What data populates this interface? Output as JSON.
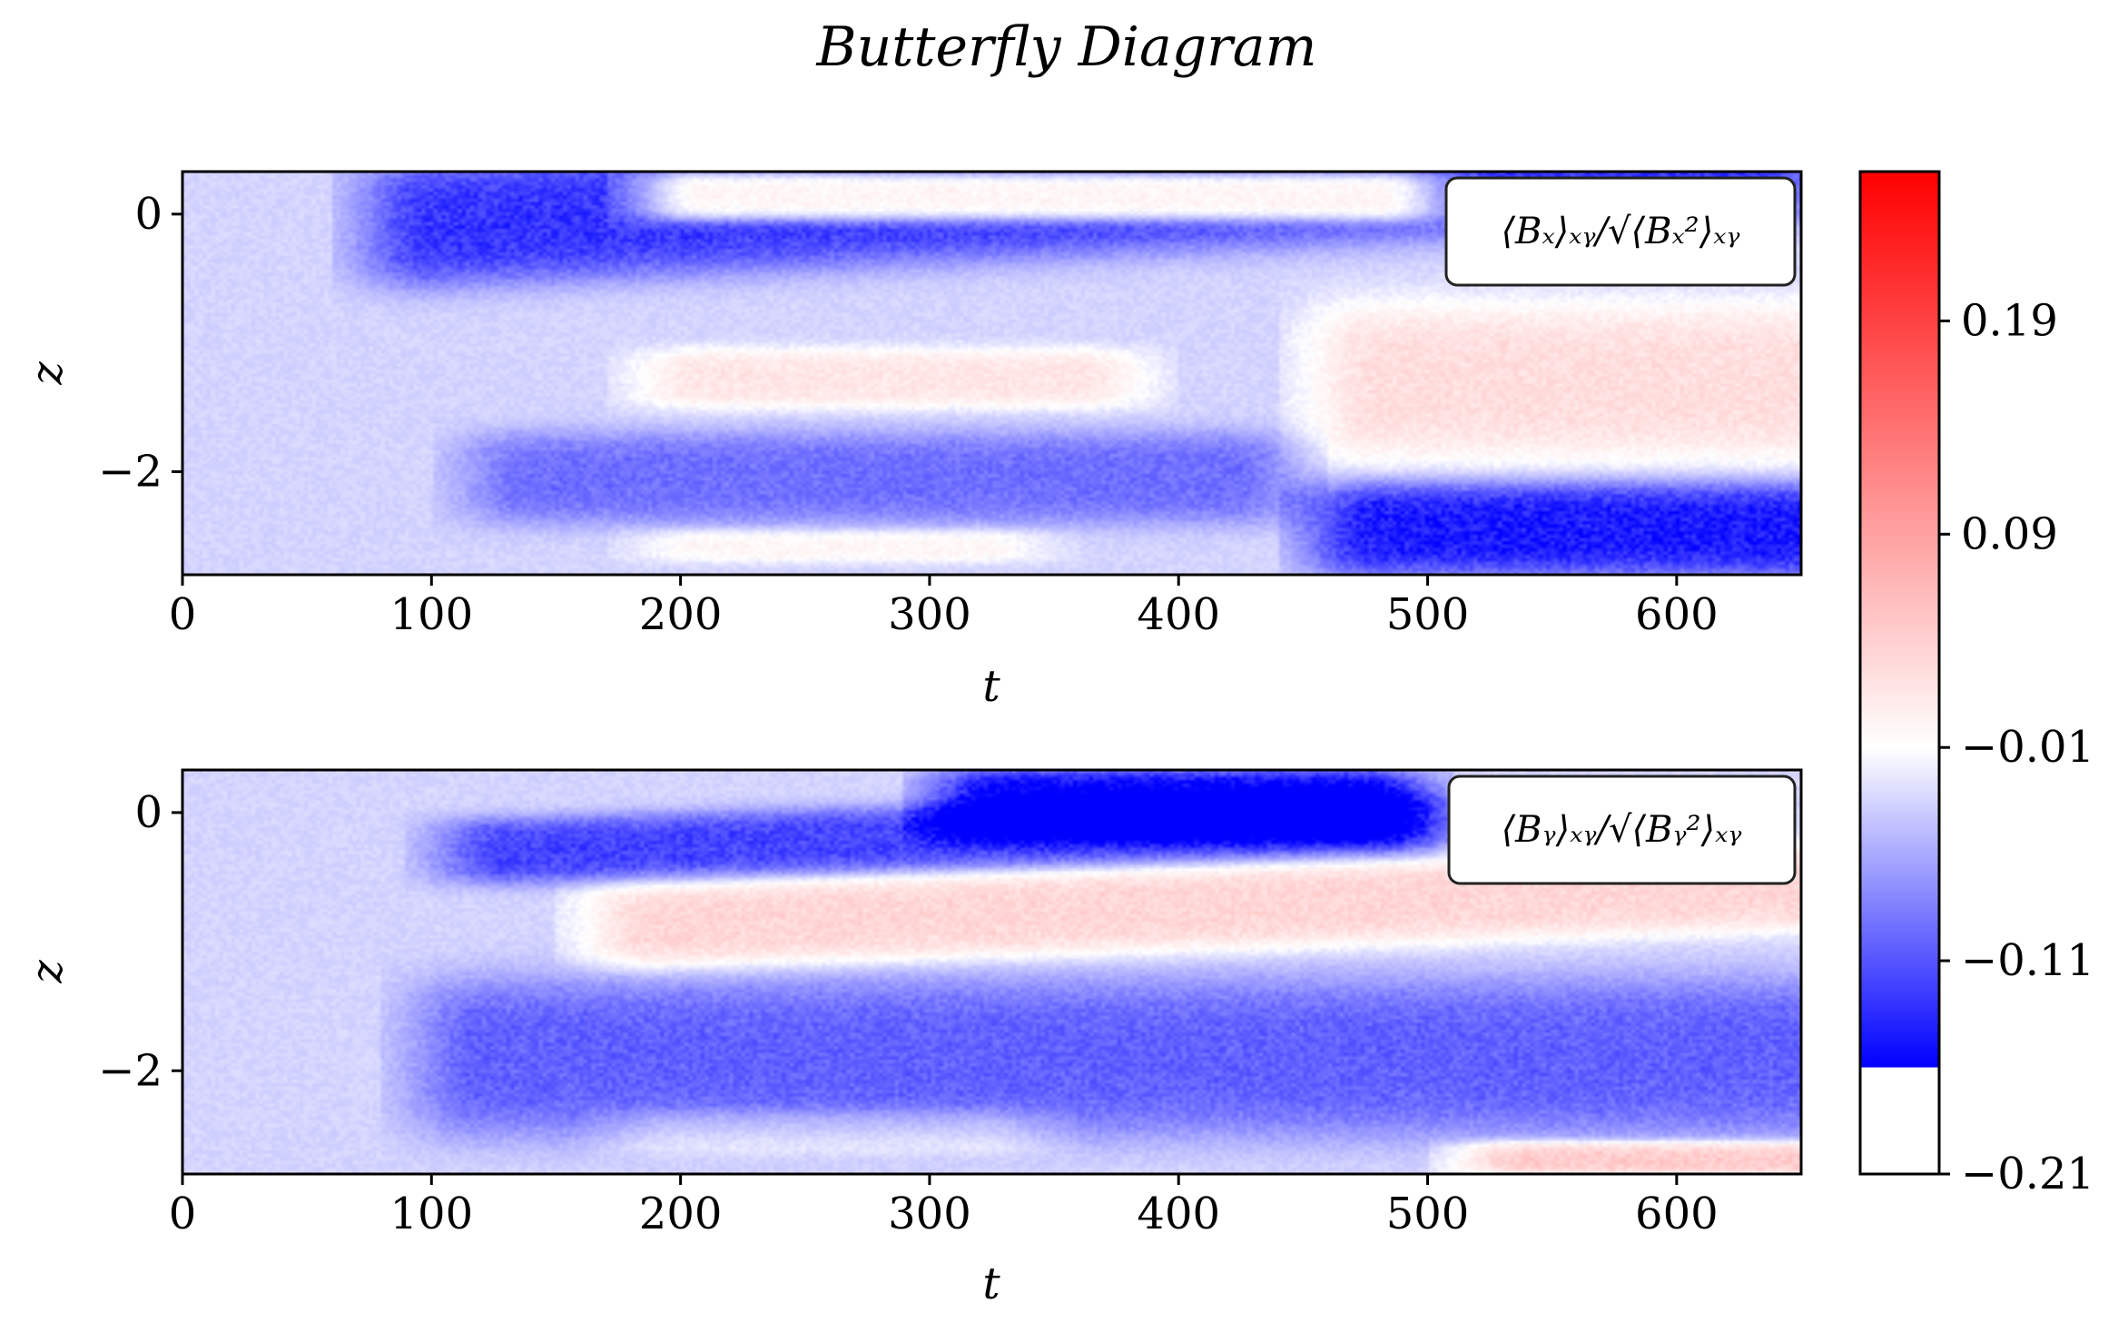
{
  "figure": {
    "title": "Butterfly Diagram"
  },
  "chart_data": [
    {
      "type": "heatmap",
      "title": "",
      "annotation": "⟨Bₓ⟩ₓᵧ/√⟨Bₓ²⟩ₓᵧ",
      "xlabel": "t",
      "ylabel": "z",
      "xlim": [
        0,
        650
      ],
      "ylim": [
        -2.8,
        0.33
      ],
      "xticks": [
        0,
        100,
        200,
        300,
        400,
        500,
        600
      ],
      "xtick_labels": [
        "0",
        "100",
        "200",
        "300",
        "400",
        "500",
        "600"
      ],
      "yticks": [
        0,
        -2
      ],
      "ytick_labels": [
        "0",
        "−2"
      ],
      "colormap": "bwr",
      "bands": [
        {
          "t_start": 210,
          "t_end": 480,
          "z_start": 0.33,
          "z_end": -0.05,
          "z_slope": 0.0,
          "value": 0.15
        },
        {
          "t_start": 100,
          "t_end": 630,
          "z_start": -0.55,
          "z_end": 0.4,
          "z_slope": 1.0,
          "value": -0.11
        },
        {
          "t_start": 480,
          "t_end": 650,
          "z_start": -0.7,
          "z_end": -1.9,
          "z_slope": 0.0,
          "value": 0.07
        },
        {
          "t_start": 210,
          "t_end": 360,
          "z_start": -1.05,
          "z_end": -1.5,
          "z_slope": 0.0,
          "value": 0.06
        },
        {
          "t_start": 140,
          "t_end": 420,
          "z_start": -1.7,
          "z_end": -2.4,
          "z_slope": 0.0,
          "value": -0.07
        },
        {
          "t_start": 480,
          "t_end": 650,
          "z_start": -2.1,
          "z_end": -2.8,
          "z_slope": 0.0,
          "value": -0.13
        },
        {
          "t_start": 210,
          "t_end": 320,
          "z_start": -2.45,
          "z_end": -2.7,
          "z_slope": 0.0,
          "value": 0.04
        }
      ]
    },
    {
      "type": "heatmap",
      "title": "",
      "annotation": "⟨Bᵧ⟩ₓᵧ/√⟨Bᵧ²⟩ₓᵧ",
      "xlabel": "t",
      "ylabel": "z",
      "xlim": [
        0,
        650
      ],
      "ylim": [
        -2.8,
        0.33
      ],
      "xticks": [
        0,
        100,
        200,
        300,
        400,
        500,
        600
      ],
      "xtick_labels": [
        "0",
        "100",
        "200",
        "300",
        "400",
        "500",
        "600"
      ],
      "yticks": [
        0,
        -2
      ],
      "ytick_labels": [
        "0",
        "−2"
      ],
      "colormap": "bwr",
      "bands": [
        {
          "t_start": 130,
          "t_end": 480,
          "z_start": -0.05,
          "z_end": -0.55,
          "z_slope": 0.4,
          "value": -0.1
        },
        {
          "t_start": 330,
          "t_end": 470,
          "z_start": 0.33,
          "z_end": -0.2,
          "z_slope": 0.0,
          "value": -0.16
        },
        {
          "t_start": 190,
          "t_end": 650,
          "z_start": -0.55,
          "z_end": -1.2,
          "z_slope": 0.6,
          "value": 0.08
        },
        {
          "t_start": 120,
          "t_end": 650,
          "z_start": -1.3,
          "z_end": -2.5,
          "z_slope": 0.0,
          "value": -0.08
        },
        {
          "t_start": 200,
          "t_end": 320,
          "z_start": -2.3,
          "z_end": -2.65,
          "z_slope": 0.0,
          "value": 0.035
        },
        {
          "t_start": 540,
          "t_end": 650,
          "z_start": -2.55,
          "z_end": -2.8,
          "z_slope": 0.0,
          "value": 0.1
        }
      ]
    }
  ],
  "colorbar": {
    "ticks": [
      0.19,
      0.09,
      -0.01,
      -0.11,
      -0.21
    ],
    "tick_labels": [
      "0.19",
      "0.09",
      "−0.01",
      "−0.11",
      "−0.21"
    ],
    "vmin": -0.21,
    "vmax": 0.26,
    "gradient_from": -0.16,
    "colors": {
      "low": "#0000ff",
      "mid": "#ffffff",
      "high": "#ff0000"
    }
  }
}
